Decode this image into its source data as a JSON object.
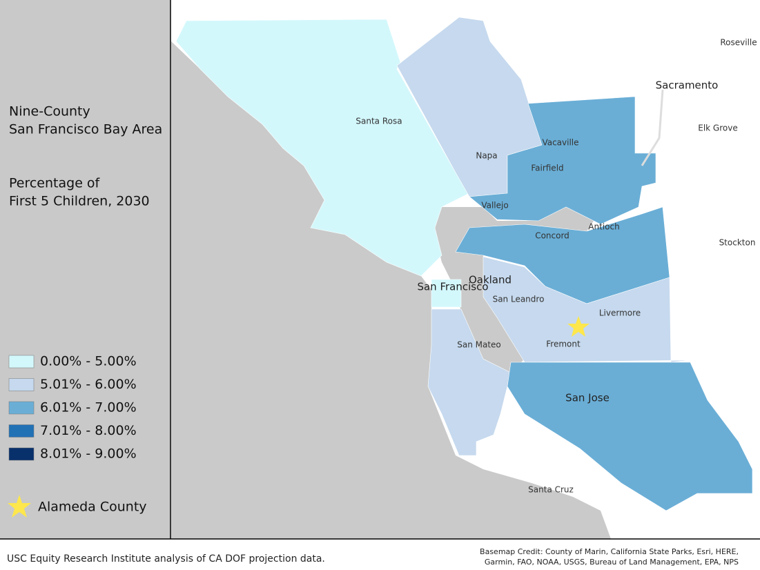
{
  "sidebar": {
    "title": [
      "Nine-County",
      "San Francisco Bay Area"
    ],
    "subtitle": [
      "Percentage of",
      "First 5 Children, 2030"
    ]
  },
  "legend": {
    "items": [
      {
        "label": "0.00% - 5.00%",
        "color": "#d3f8fc"
      },
      {
        "label": "5.01% - 6.00%",
        "color": "#c6d9ee"
      },
      {
        "label": "6.01% - 7.00%",
        "color": "#6aaed6"
      },
      {
        "label": "7.01% - 8.00%",
        "color": "#2171b5"
      },
      {
        "label": "8.01% - 9.00%",
        "color": "#08306b"
      }
    ],
    "marker": {
      "label": "Alameda County",
      "color": "#fde74c"
    }
  },
  "map": {
    "places": [
      "Roseville",
      "Sacramento",
      "Elk Grove",
      "Santa Rosa",
      "Vacaville",
      "Napa",
      "Fairfield",
      "Vallejo",
      "Antioch",
      "Concord",
      "Stockton",
      "Oakland",
      "San Francisco",
      "San Leandro",
      "Livermore",
      "Fremont",
      "San Mateo",
      "San Jose",
      "Santa Cruz"
    ]
  },
  "footer": {
    "source": "USC Equity Research Institute analysis of CA DOF projection data.",
    "credit": [
      "Basemap Credit: County of Marin, California State Parks, Esri, HERE,",
      "Garmin, FAO, NOAA, USGS, Bureau of Land Management, EPA, NPS"
    ]
  }
}
